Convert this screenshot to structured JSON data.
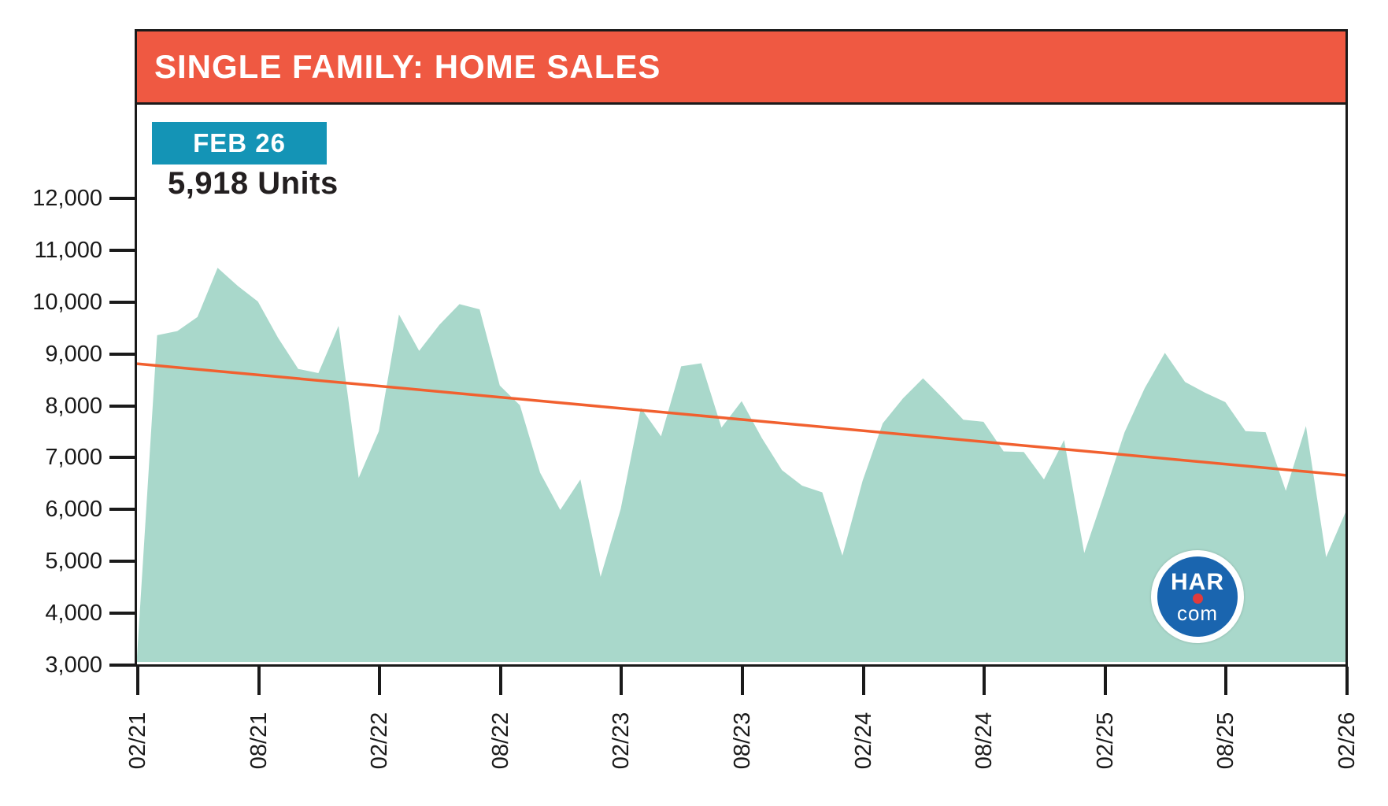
{
  "header": {
    "title": "SINGLE FAMILY: HOME SALES"
  },
  "annotation": {
    "badge": "FEB 26",
    "units": "5,918 Units"
  },
  "logo": {
    "line1": "HAR",
    "line2": "com"
  },
  "colors": {
    "header_bg": "#EF5942",
    "badge_bg": "#1494B6",
    "area_fill": "#A9D8CB",
    "trend_line": "#F1602F",
    "axis": "#1A1A1A",
    "logo_blue": "#1A65AF",
    "logo_red": "#E03B3C"
  },
  "chart_data": {
    "type": "area",
    "title": "SINGLE FAMILY: HOME SALES",
    "ylabel": "Units",
    "ylim": [
      3000,
      12000
    ],
    "grid": false,
    "legend": "none",
    "y_tick_labels": [
      "12,000",
      "11,000",
      "10,000",
      "9,000",
      "8,000",
      "7,000",
      "6,000",
      "5,000",
      "4,000",
      "3,000"
    ],
    "y_tick_values": [
      12000,
      11000,
      10000,
      9000,
      8000,
      7000,
      6000,
      5000,
      4000,
      3000
    ],
    "x_tick_labels": [
      "02/21",
      "08/21",
      "02/22",
      "08/22",
      "02/23",
      "08/23",
      "02/24",
      "08/24",
      "02/25",
      "08/25",
      "02/26"
    ],
    "x_tick_month_index": [
      0,
      6,
      12,
      18,
      24,
      30,
      36,
      42,
      48,
      54,
      60
    ],
    "months": [
      "02/21",
      "03/21",
      "04/21",
      "05/21",
      "06/21",
      "07/21",
      "08/21",
      "09/21",
      "10/21",
      "11/21",
      "12/21",
      "01/22",
      "02/22",
      "03/22",
      "04/22",
      "05/22",
      "06/22",
      "07/22",
      "08/22",
      "09/22",
      "10/22",
      "11/22",
      "12/22",
      "01/23",
      "02/23",
      "03/23",
      "04/23",
      "05/23",
      "06/23",
      "07/23",
      "08/23",
      "09/23",
      "10/23",
      "11/23",
      "12/23",
      "01/24",
      "02/24",
      "03/24",
      "04/24",
      "05/24",
      "06/24",
      "07/24",
      "08/24",
      "09/24",
      "10/24",
      "11/24",
      "12/24",
      "01/25",
      "02/25",
      "03/25",
      "04/25",
      "05/25",
      "06/25",
      "07/25",
      "08/25",
      "09/25",
      "10/25",
      "11/25",
      "12/25",
      "01/26",
      "02/26"
    ],
    "values": [
      3100,
      9300,
      9380,
      9650,
      10600,
      10250,
      9950,
      9250,
      8650,
      8570,
      9480,
      6550,
      7450,
      9700,
      9000,
      9500,
      9900,
      9800,
      8330,
      7950,
      6650,
      5930,
      6520,
      4640,
      5950,
      7900,
      7350,
      8700,
      8760,
      7520,
      8030,
      7320,
      6700,
      6400,
      6270,
      5050,
      6490,
      7600,
      8080,
      8470,
      8080,
      7670,
      7630,
      7060,
      7050,
      6520,
      7280,
      5100,
      6250,
      7430,
      8280,
      8960,
      8400,
      8190,
      8010,
      7450,
      7430,
      6300,
      7550,
      5020,
      5918
    ],
    "trend": {
      "start_value": 8750,
      "end_value": 6600
    },
    "latest": {
      "label": "FEB 26",
      "value": 5918,
      "value_text": "5,918 Units"
    }
  }
}
